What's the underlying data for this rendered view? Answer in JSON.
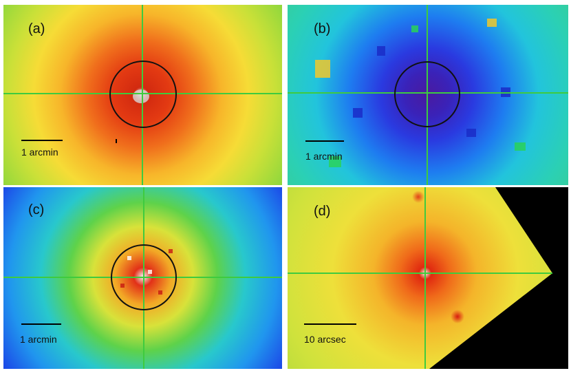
{
  "panels": {
    "a": {
      "label": "(a)",
      "scale_label": "1 arcmin"
    },
    "b": {
      "label": "(b)",
      "scale_label": "1 arcmin"
    },
    "c": {
      "label": "(c)",
      "scale_label": "1 arcmin"
    },
    "d": {
      "label": "(d)",
      "scale_label": "10 arcsec"
    }
  },
  "colors": {
    "crosshair": "#3ecb3e",
    "aperture_circle": "#111111",
    "background": "#ffffff"
  }
}
